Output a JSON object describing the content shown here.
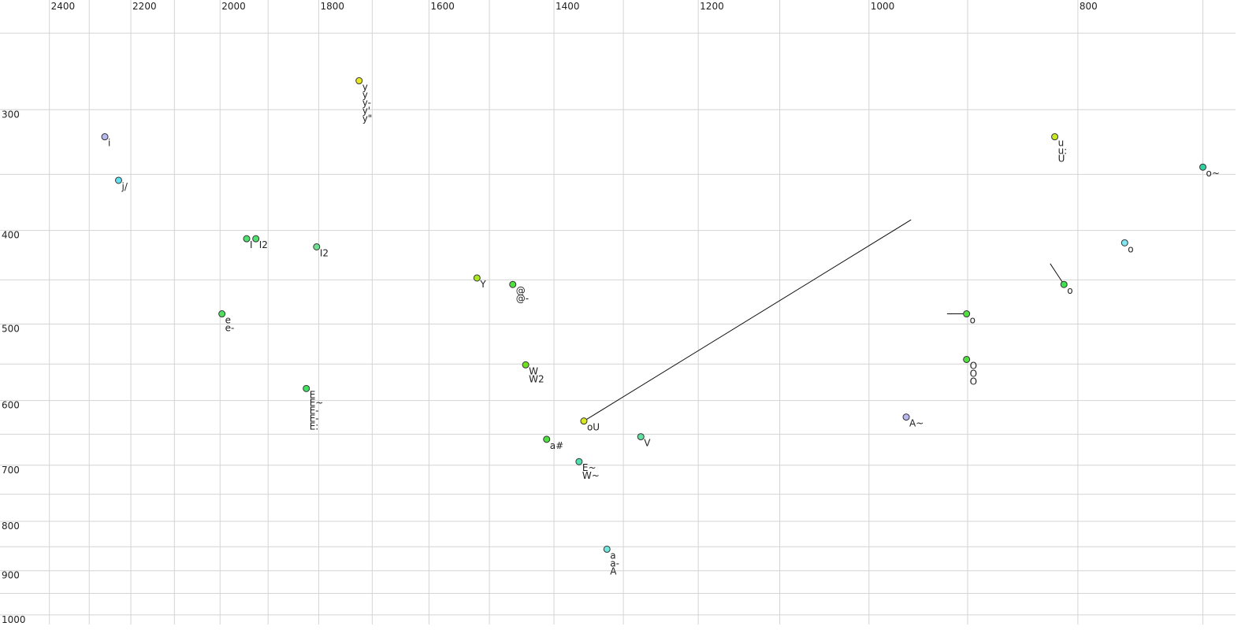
{
  "chart_data": {
    "type": "scatter",
    "x_scale": "log",
    "y_scale": "log",
    "xlim": [
      2530,
      676
    ],
    "ylim": [
      231,
      1023
    ],
    "xticks": [
      2400,
      2200,
      2000,
      1800,
      1600,
      1400,
      1200,
      1000,
      800
    ],
    "yticks": [
      300,
      400,
      500,
      600,
      700,
      800,
      900,
      1000
    ],
    "x_minor_grid": [
      2300,
      2100,
      1900,
      1700,
      1500,
      1300,
      1100,
      900,
      700
    ],
    "y_minor_grid": [
      250,
      350,
      450,
      550,
      650,
      750,
      850,
      950
    ],
    "grid": true,
    "x": [
      2262,
      2229,
      1944,
      1925,
      1804,
      1724,
      1996,
      1824,
      1520,
      1463,
      1443,
      1356,
      1411,
      1276,
      1363,
      1323,
      961,
      901,
      901,
      820,
      812,
      761,
      700
    ],
    "values": [
      320,
      355,
      408,
      408,
      416,
      280,
      488,
      583,
      448,
      455,
      551,
      630,
      658,
      654,
      694,
      855,
      624,
      488,
      544,
      320,
      455,
      412,
      344
    ],
    "colors": [
      "#b8b8f0",
      "#60e0f0",
      "#50e070",
      "#50e070",
      "#70e090",
      "#e8e820",
      "#50e060",
      "#40e060",
      "#a8e820",
      "#50e040",
      "#70e020",
      "#d8e820",
      "#50e040",
      "#60e0a0",
      "#50e0b0",
      "#70e8e0",
      "#b8b8f0",
      "#50e040",
      "#50e040",
      "#c8e820",
      "#40e050",
      "#80e8f0",
      "#30d0a0"
    ],
    "point_labels": [
      [
        "i"
      ],
      [
        "j/"
      ],
      [
        "I"
      ],
      [
        "I2"
      ],
      [
        "I2"
      ],
      [
        "y",
        "y",
        "y-",
        "y'",
        "y\""
      ],
      [
        "e",
        "e-"
      ],
      [
        "E",
        "E~",
        "E-",
        "E-",
        "E:"
      ],
      [
        "Y"
      ],
      [
        "@",
        "@-"
      ],
      [
        "W",
        "W2"
      ],
      [
        "oU"
      ],
      [
        "a#"
      ],
      [
        "V"
      ],
      [
        "E~",
        "W~"
      ],
      [
        "a",
        "a-",
        "A"
      ],
      [
        "A~"
      ],
      [
        "o"
      ],
      [
        "O",
        "O",
        "O"
      ],
      [
        "u",
        "u:",
        "U"
      ],
      [
        "o"
      ],
      [
        "o"
      ],
      [
        "o~"
      ]
    ],
    "x_to": [
      null,
      null,
      null,
      null,
      null,
      null,
      null,
      null,
      null,
      null,
      null,
      956,
      null,
      null,
      null,
      null,
      null,
      920,
      null,
      null,
      824,
      null,
      null
    ],
    "values_to": [
      null,
      null,
      null,
      null,
      null,
      null,
      null,
      null,
      null,
      null,
      null,
      390,
      null,
      null,
      null,
      null,
      null,
      488,
      null,
      null,
      433,
      null,
      null
    ]
  }
}
